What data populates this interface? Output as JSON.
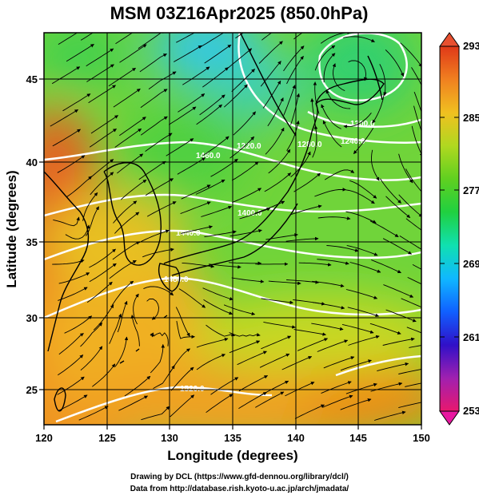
{
  "figure": {
    "title": "MSM 03Z16Apr2025 (850.0hPa)",
    "xlabel": "Longitude (degrees)",
    "ylabel": "Latitude  (degrees)",
    "xticks": [
      "120",
      "125",
      "130",
      "135",
      "140",
      "145",
      "150"
    ],
    "yticks": [
      "25",
      "30",
      "35",
      "40",
      "45"
    ],
    "colorbar_ticks": [
      "293",
      "285",
      "277",
      "269",
      "261",
      "253"
    ],
    "colorbar_colors": [
      "#e8186e",
      "#a020b0",
      "#3010c8",
      "#1060ff",
      "#10b8ff",
      "#10e0b0",
      "#20d040",
      "#60d020",
      "#b0d820",
      "#f0c020",
      "#f08020",
      "#e03818"
    ],
    "contour_labels": [
      "1200.0",
      "1240.0",
      "1220.0",
      "1280.0",
      "1400.0",
      "1440.0",
      "1480.0",
      "1520.0",
      "1460.0"
    ],
    "credits": {
      "line1": "Drawing by DCL (https://www.gfd-dennou.org/library/dcl/)",
      "line2": "Data from http://database.rish.kyoto-u.ac.jp/arch/jmadata/"
    }
  },
  "chart_data": {
    "type": "heatmap",
    "title": "MSM 03Z16Apr2025 (850.0hPa)",
    "xlabel": "Longitude (degrees)",
    "ylabel": "Latitude  (degrees)",
    "xlim": [
      120,
      150
    ],
    "ylim": [
      22.5,
      47.6
    ],
    "xticks": [
      120,
      125,
      130,
      135,
      140,
      145,
      150
    ],
    "yticks": [
      25,
      30,
      35,
      40,
      45
    ],
    "colorbar": {
      "min": 253,
      "max": 293,
      "ticks": [
        293,
        285,
        277,
        269,
        261,
        253
      ],
      "orientation": "vertical",
      "extend": "both"
    },
    "overlays": [
      "temperature shading",
      "geopotential height contours (white)",
      "wind streamlines (black)",
      "coastlines",
      "lat/lon grid"
    ]
  }
}
